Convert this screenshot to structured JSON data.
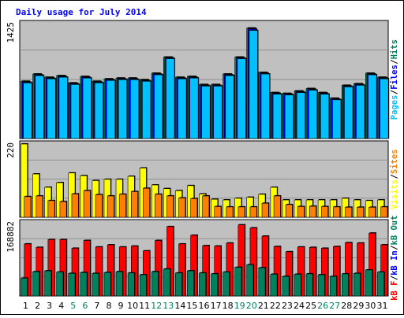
{
  "chart_data": [
    {
      "type": "bar",
      "panel": "hits",
      "title": "Daily usage for July 2014",
      "ytick": "1425",
      "ylim": [
        0,
        1425
      ],
      "right_labels": [
        "Pages",
        "Files",
        "Hits"
      ],
      "categories": [
        "1",
        "2",
        "3",
        "4",
        "5",
        "6",
        "7",
        "8",
        "9",
        "10",
        "11",
        "12",
        "13",
        "14",
        "15",
        "16",
        "17",
        "18",
        "19",
        "20",
        "21",
        "22",
        "23",
        "24",
        "25",
        "26",
        "27",
        "28",
        "29",
        "30",
        "31"
      ],
      "series": [
        {
          "name": "Hits",
          "values": [
            710,
            800,
            760,
            780,
            690,
            770,
            710,
            740,
            750,
            750,
            730,
            810,
            1010,
            760,
            770,
            670,
            670,
            800,
            1010,
            1370,
            820,
            570,
            560,
            590,
            620,
            570,
            500,
            660,
            680,
            810,
            760
          ]
        },
        {
          "name": "Files",
          "values": [
            700,
            790,
            750,
            770,
            680,
            760,
            700,
            730,
            740,
            740,
            720,
            800,
            1000,
            750,
            760,
            660,
            660,
            790,
            1000,
            1360,
            810,
            560,
            550,
            580,
            610,
            560,
            490,
            650,
            670,
            800,
            750
          ]
        },
        {
          "name": "Pages",
          "values": [
            690,
            780,
            740,
            760,
            670,
            750,
            690,
            720,
            730,
            730,
            710,
            790,
            990,
            740,
            750,
            650,
            650,
            780,
            990,
            1340,
            800,
            550,
            540,
            570,
            600,
            550,
            480,
            640,
            660,
            790,
            740
          ]
        }
      ]
    },
    {
      "type": "bar",
      "panel": "visits",
      "ytick": "220",
      "ylim": [
        0,
        220
      ],
      "right_labels": [
        "Visits",
        "Sites"
      ],
      "series": [
        {
          "name": "Visits",
          "values": [
            220,
            130,
            90,
            104,
            133,
            125,
            110,
            114,
            114,
            123,
            148,
            97,
            86,
            80,
            95,
            70,
            54,
            52,
            57,
            60,
            69,
            90,
            52,
            52,
            52,
            52,
            52,
            57,
            52,
            50,
            52
          ]
        },
        {
          "name": "Sites",
          "values": [
            62,
            64,
            50,
            47,
            70,
            80,
            68,
            64,
            69,
            77,
            87,
            69,
            64,
            58,
            56,
            64,
            32,
            31,
            31,
            31,
            42,
            64,
            38,
            32,
            33,
            32,
            31,
            30,
            30,
            30,
            31
          ]
        }
      ]
    },
    {
      "type": "bar",
      "panel": "kbytes",
      "ytick": "168882",
      "ylim": [
        0,
        168882
      ],
      "right_labels": [
        "kB F",
        "kB In",
        "kB Out"
      ],
      "series": [
        {
          "name": "kB F",
          "values": [
            120000,
            112000,
            130000,
            130000,
            110000,
            128000,
            113000,
            118000,
            113000,
            115000,
            104000,
            128000,
            160000,
            120000,
            140000,
            116000,
            115000,
            122000,
            164000,
            157000,
            138000,
            114000,
            102000,
            113000,
            112000,
            110000,
            114000,
            123000,
            122000,
            145000,
            118000
          ]
        },
        {
          "name": "kB Out",
          "values": [
            41000,
            56000,
            58000,
            55000,
            52000,
            54000,
            52000,
            54000,
            56000,
            53000,
            49000,
            56000,
            62000,
            53000,
            58000,
            53000,
            51000,
            55000,
            66000,
            72000,
            65000,
            50000,
            45000,
            50000,
            51000,
            49000,
            45000,
            51000,
            52000,
            60000,
            55000
          ]
        }
      ]
    }
  ],
  "colors": {
    "hits": "#00805c",
    "files": "#0000ff",
    "pages": "#00c0ff",
    "visits": "#ffff00",
    "sites": "#ff8000",
    "kbytes_f": "#ff0000",
    "kbytes_in": "#0000ff",
    "kbytes_out": "#00805c",
    "plot_bg": "#c0c0c0",
    "title": "#0000ff",
    "weekend_day": "#00805c",
    "weekday": "#000000"
  },
  "weekend_days": [
    "5",
    "6",
    "12",
    "13",
    "19",
    "20",
    "26",
    "27"
  ]
}
